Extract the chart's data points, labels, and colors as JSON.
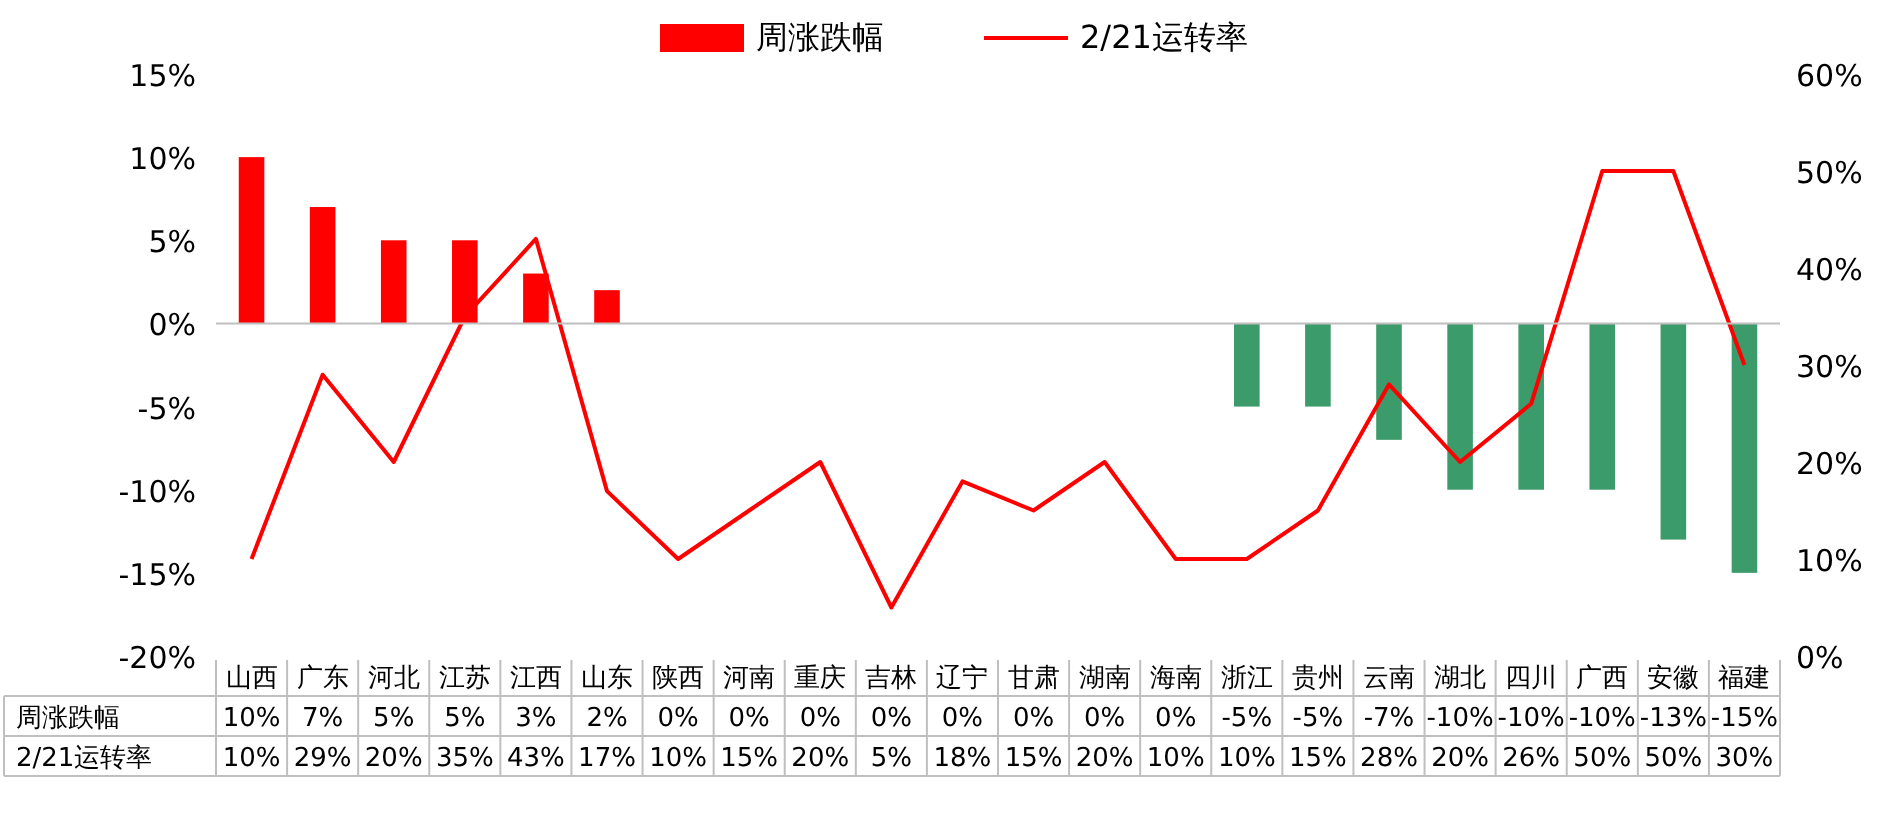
{
  "chart_data": {
    "type": "bar",
    "categories": [
      "山西",
      "广东",
      "河北",
      "江苏",
      "江西",
      "山东",
      "陕西",
      "河南",
      "重庆",
      "吉林",
      "辽宁",
      "甘肃",
      "湖南",
      "海南",
      "浙江",
      "贵州",
      "云南",
      "湖北",
      "四川",
      "广西",
      "安徽",
      "福建"
    ],
    "series": [
      {
        "name": "周涨跌幅",
        "colors": [
          "#ff0000",
          "#ff0000",
          "#ff0000",
          "#ff0000",
          "#ff0000",
          "#ff0000",
          "#ff0000",
          "#ff0000",
          "#ff0000",
          "#ff0000",
          "#ff0000",
          "#ff0000",
          "#ff0000",
          "#ff0000",
          "#3c9b6a",
          "#3c9b6a",
          "#3c9b6a",
          "#3c9b6a",
          "#3c9b6a",
          "#3c9b6a",
          "#3c9b6a",
          "#3c9b6a"
        ],
        "color": "#ff0000",
        "values": [
          10,
          7,
          5,
          5,
          3,
          2,
          0,
          0,
          0,
          0,
          0,
          0,
          0,
          0,
          -5,
          -5,
          -7,
          -10,
          -10,
          -10,
          -13,
          -15
        ],
        "value_labels": [
          "10%",
          "7%",
          "5%",
          "5%",
          "3%",
          "2%",
          "0%",
          "0%",
          "0%",
          "0%",
          "0%",
          "0%",
          "0%",
          "0%",
          "-5%",
          "-5%",
          "-7%",
          "-10%",
          "-10%",
          "-10%",
          "-13%",
          "-15%"
        ]
      },
      {
        "name": "2/21运转率",
        "type": "line",
        "axis": "y2",
        "color": "#ff0000",
        "values": [
          10,
          29,
          20,
          35,
          43,
          17,
          10,
          15,
          20,
          5,
          18,
          15,
          20,
          10,
          10,
          15,
          28,
          20,
          26,
          50,
          50,
          30
        ],
        "value_labels": [
          "10%",
          "29%",
          "20%",
          "35%",
          "43%",
          "17%",
          "10%",
          "15%",
          "20%",
          "5%",
          "18%",
          "15%",
          "20%",
          "10%",
          "10%",
          "15%",
          "28%",
          "20%",
          "26%",
          "50%",
          "50%",
          "30%"
        ]
      }
    ],
    "ylim": [
      -20,
      15
    ],
    "yticks": [
      {
        "value": -20,
        "label": "-20%"
      },
      {
        "value": -15,
        "label": "-15%"
      },
      {
        "value": -10,
        "label": "-10%"
      },
      {
        "value": -5,
        "label": "-5%"
      },
      {
        "value": 0,
        "label": "0%"
      },
      {
        "value": 5,
        "label": "5%"
      },
      {
        "value": 10,
        "label": "10%"
      },
      {
        "value": 15,
        "label": "15%"
      }
    ],
    "y2lim": [
      0,
      60
    ],
    "y2ticks": [
      {
        "value": 0,
        "label": "0%"
      },
      {
        "value": 10,
        "label": "10%"
      },
      {
        "value": 20,
        "label": "20%"
      },
      {
        "value": 30,
        "label": "30%"
      },
      {
        "value": 40,
        "label": "40%"
      },
      {
        "value": 50,
        "label": "50%"
      },
      {
        "value": 60,
        "label": "60%"
      }
    ],
    "legend": "top",
    "marker": "none"
  }
}
